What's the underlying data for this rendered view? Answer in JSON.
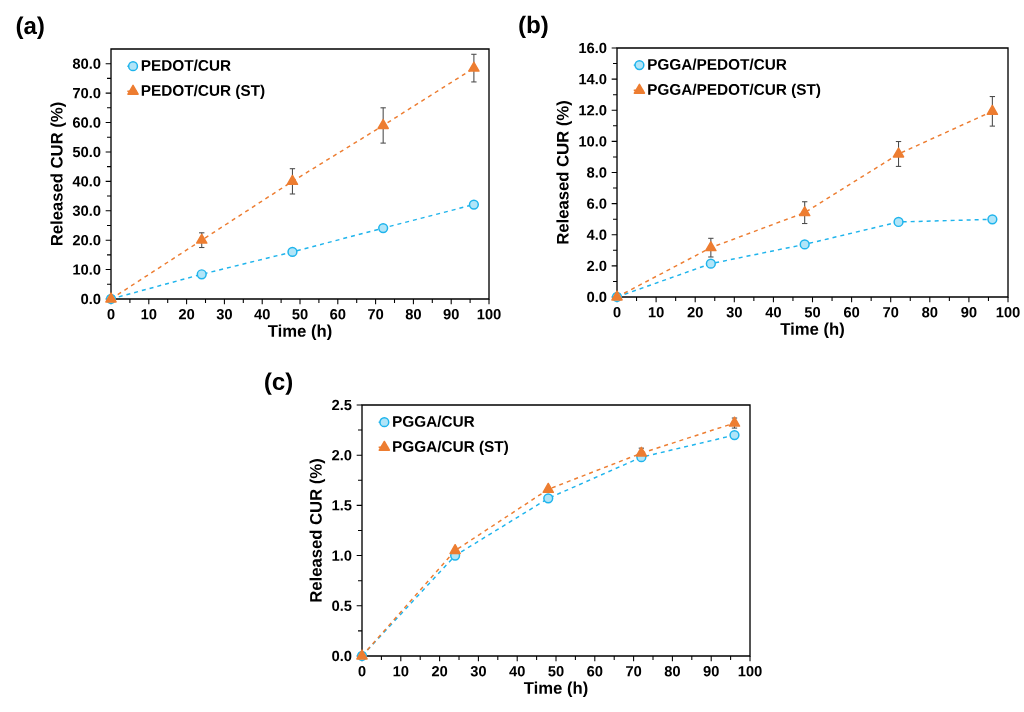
{
  "chart_data": [
    {
      "type": "line",
      "title": "(a)",
      "xlabel": "Time (h)",
      "ylabel": "Released CUR (%)",
      "x": [
        0,
        24,
        48,
        72,
        96
      ],
      "xlim": [
        0,
        100
      ],
      "xticks": [
        0,
        10,
        20,
        30,
        40,
        50,
        60,
        70,
        80,
        90,
        100
      ],
      "ylim": [
        0,
        85
      ],
      "yticks": [
        {
          "value": 0,
          "label": "0.0"
        },
        {
          "value": 10,
          "label": "10.0"
        },
        {
          "value": 20,
          "label": "20.0"
        },
        {
          "value": 30,
          "label": "30.0"
        },
        {
          "value": 40,
          "label": "40.0"
        },
        {
          "value": 50,
          "label": "50.0"
        },
        {
          "value": 60,
          "label": "60.0"
        },
        {
          "value": 70,
          "label": "70.0"
        },
        {
          "value": 80,
          "label": "80.0"
        }
      ],
      "legend": "top left",
      "line_style": "dashed",
      "series": [
        {
          "name": "PEDOT/CUR",
          "color": "#1fb4ec",
          "marker": "circle",
          "values": [
            0,
            8.4,
            16.0,
            24.1,
            32.1
          ]
        },
        {
          "name": "PEDOT/CUR (ST)",
          "color": "#ed7d31",
          "marker": "triangle",
          "values": [
            0,
            20.0,
            40.0,
            59.0,
            78.5
          ],
          "errors": [
            null,
            2.5,
            4.3,
            6.0,
            4.7
          ]
        }
      ]
    },
    {
      "type": "line",
      "title": "(b)",
      "xlabel": "Time (h)",
      "ylabel": "Released CUR (%)",
      "x": [
        0,
        24,
        48,
        72,
        96
      ],
      "xlim": [
        0,
        100
      ],
      "xticks": [
        0,
        10,
        20,
        30,
        40,
        50,
        60,
        70,
        80,
        90,
        100
      ],
      "ylim": [
        0,
        16
      ],
      "yticks": [
        {
          "value": 0,
          "label": "0.0"
        },
        {
          "value": 2,
          "label": "2.0"
        },
        {
          "value": 4,
          "label": "4.0"
        },
        {
          "value": 6,
          "label": "6.0"
        },
        {
          "value": 8,
          "label": "8.0"
        },
        {
          "value": 10,
          "label": "10.0"
        },
        {
          "value": 12,
          "label": "12.0"
        },
        {
          "value": 14,
          "label": "14.0"
        },
        {
          "value": 16,
          "label": "16.0"
        }
      ],
      "legend": "top left",
      "line_style": "dashed",
      "series": [
        {
          "name": "PGGA/PEDOT/CUR",
          "color": "#1fb4ec",
          "marker": "circle",
          "values": [
            0,
            2.14,
            3.38,
            4.82,
            4.99
          ]
        },
        {
          "name": "PGGA/PEDOT/CUR (ST)",
          "color": "#ed7d31",
          "marker": "triangle",
          "values": [
            0,
            3.17,
            5.42,
            9.19,
            11.93
          ],
          "errors": [
            null,
            0.6,
            0.7,
            0.8,
            0.95
          ]
        }
      ]
    },
    {
      "type": "line",
      "title": "(c)",
      "xlabel": "Time (h)",
      "ylabel": "Released CUR (%)",
      "x": [
        0,
        24,
        48,
        72,
        96
      ],
      "xlim": [
        0,
        100
      ],
      "xticks": [
        0,
        10,
        20,
        30,
        40,
        50,
        60,
        70,
        80,
        90,
        100
      ],
      "ylim": [
        0,
        2.5
      ],
      "yticks": [
        {
          "value": 0,
          "label": "0.0"
        },
        {
          "value": 0.5,
          "label": "0.5"
        },
        {
          "value": 1,
          "label": "1.0"
        },
        {
          "value": 1.5,
          "label": "1.5"
        },
        {
          "value": 2,
          "label": "2.0"
        },
        {
          "value": 2.5,
          "label": "2.5"
        }
      ],
      "legend": "top left",
      "line_style": "dashed",
      "series": [
        {
          "name": "PGGA/CUR",
          "color": "#1fb4ec",
          "marker": "circle",
          "values": [
            0,
            1.0,
            1.57,
            1.98,
            2.2
          ]
        },
        {
          "name": "PGGA/CUR (ST)",
          "color": "#ed7d31",
          "marker": "triangle",
          "values": [
            0,
            1.05,
            1.66,
            2.02,
            2.32
          ],
          "errors": [
            null,
            null,
            null,
            0.05,
            0.05
          ]
        }
      ]
    }
  ]
}
